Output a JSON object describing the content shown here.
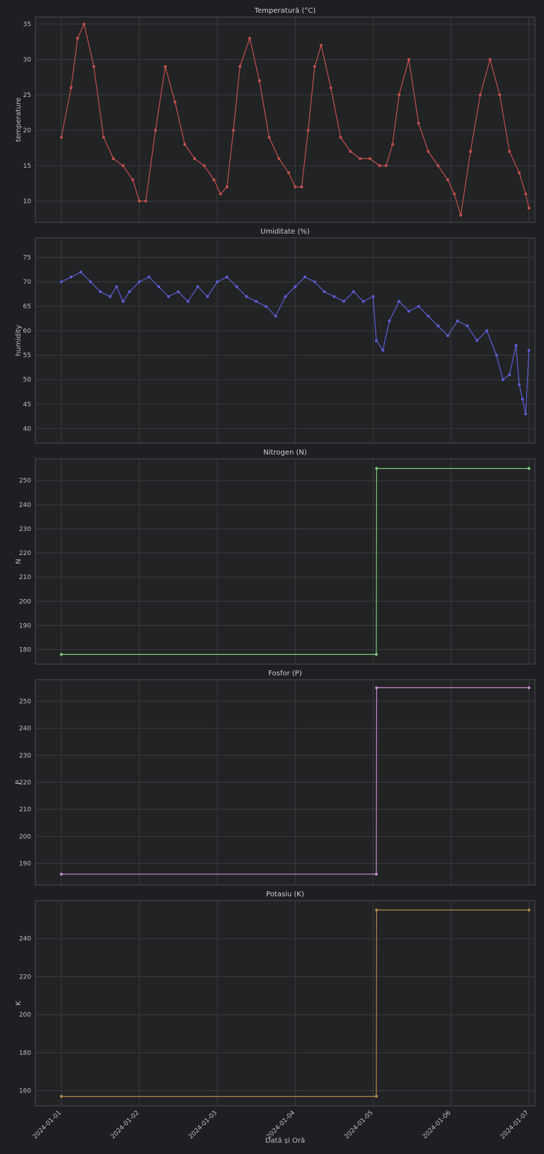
{
  "chart_data": [
    {
      "type": "line",
      "title": "Temperatură (°C)",
      "ylabel": "temperature",
      "xlabel": "",
      "ylim": [
        7,
        36
      ],
      "yticks": [
        10,
        15,
        20,
        25,
        30,
        35
      ],
      "color": "#c0504d",
      "grid": true,
      "series": [
        {
          "x": [
            "2024-01-01 00:00",
            "2024-01-01 03:00",
            "2024-01-01 05:00",
            "2024-01-01 07:00",
            "2024-01-01 10:00",
            "2024-01-01 13:00",
            "2024-01-01 16:00",
            "2024-01-01 19:00",
            "2024-01-01 22:00",
            "2024-01-02 00:00",
            "2024-01-02 02:00",
            "2024-01-02 05:00",
            "2024-01-02 08:00",
            "2024-01-02 11:00",
            "2024-01-02 14:00",
            "2024-01-02 17:00",
            "2024-01-02 20:00",
            "2024-01-02 23:00",
            "2024-01-03 01:00",
            "2024-01-03 03:00",
            "2024-01-03 05:00",
            "2024-01-03 07:00",
            "2024-01-03 10:00",
            "2024-01-03 13:00",
            "2024-01-03 16:00",
            "2024-01-03 19:00",
            "2024-01-03 22:00",
            "2024-01-04 00:00",
            "2024-01-04 02:00",
            "2024-01-04 04:00",
            "2024-01-04 06:00",
            "2024-01-04 08:00",
            "2024-01-04 11:00",
            "2024-01-04 14:00",
            "2024-01-04 17:00",
            "2024-01-04 20:00",
            "2024-01-04 23:00",
            "2024-01-05 02:00",
            "2024-01-05 04:00",
            "2024-01-05 06:00",
            "2024-01-05 08:00",
            "2024-01-05 11:00",
            "2024-01-05 14:00",
            "2024-01-05 17:00",
            "2024-01-05 20:00",
            "2024-01-05 23:00",
            "2024-01-06 01:00",
            "2024-01-06 03:00",
            "2024-01-06 06:00",
            "2024-01-06 09:00",
            "2024-01-06 12:00",
            "2024-01-06 15:00",
            "2024-01-06 18:00",
            "2024-01-06 21:00",
            "2024-01-06 23:00",
            "2024-01-07 00:00"
          ],
          "y": [
            19,
            26,
            33,
            35,
            29,
            19,
            16,
            15,
            13,
            10,
            10,
            20,
            29,
            24,
            18,
            16,
            15,
            13,
            11,
            12,
            20,
            29,
            33,
            27,
            19,
            16,
            14,
            12,
            12,
            20,
            29,
            32,
            26,
            19,
            17,
            16,
            16,
            15,
            15,
            18,
            25,
            30,
            21,
            17,
            15,
            13,
            11,
            8,
            17,
            25,
            30,
            25,
            17,
            14,
            11,
            9
          ]
        }
      ]
    },
    {
      "type": "line",
      "title": "Umiditate (%)",
      "ylabel": "humidity",
      "xlabel": "",
      "ylim": [
        37,
        79
      ],
      "yticks": [
        40,
        45,
        50,
        55,
        60,
        65,
        70,
        75
      ],
      "color": "#5a5fd0",
      "grid": true,
      "series": [
        {
          "x": [
            "2024-01-01 00:00",
            "2024-01-01 03:00",
            "2024-01-01 06:00",
            "2024-01-01 09:00",
            "2024-01-01 12:00",
            "2024-01-01 15:00",
            "2024-01-01 17:00",
            "2024-01-01 19:00",
            "2024-01-01 21:00",
            "2024-01-02 00:00",
            "2024-01-02 03:00",
            "2024-01-02 06:00",
            "2024-01-02 09:00",
            "2024-01-02 12:00",
            "2024-01-02 15:00",
            "2024-01-02 18:00",
            "2024-01-02 21:00",
            "2024-01-03 00:00",
            "2024-01-03 03:00",
            "2024-01-03 06:00",
            "2024-01-03 09:00",
            "2024-01-03 12:00",
            "2024-01-03 15:00",
            "2024-01-03 18:00",
            "2024-01-03 21:00",
            "2024-01-04 00:00",
            "2024-01-04 03:00",
            "2024-01-04 06:00",
            "2024-01-04 09:00",
            "2024-01-04 12:00",
            "2024-01-04 15:00",
            "2024-01-04 18:00",
            "2024-01-04 21:00",
            "2024-01-05 00:00",
            "2024-01-05 01:00",
            "2024-01-05 03:00",
            "2024-01-05 05:00",
            "2024-01-05 08:00",
            "2024-01-05 11:00",
            "2024-01-05 14:00",
            "2024-01-05 17:00",
            "2024-01-05 20:00",
            "2024-01-05 23:00",
            "2024-01-06 02:00",
            "2024-01-06 05:00",
            "2024-01-06 08:00",
            "2024-01-06 11:00",
            "2024-01-06 14:00",
            "2024-01-06 16:00",
            "2024-01-06 18:00",
            "2024-01-06 20:00",
            "2024-01-06 21:00",
            "2024-01-06 22:00",
            "2024-01-06 23:00",
            "2024-01-07 00:00"
          ],
          "y": [
            70,
            71,
            72,
            70,
            68,
            67,
            69,
            66,
            68,
            70,
            71,
            69,
            67,
            68,
            66,
            69,
            67,
            70,
            71,
            69,
            67,
            66,
            65,
            63,
            67,
            69,
            71,
            70,
            68,
            67,
            66,
            68,
            66,
            67,
            58,
            56,
            62,
            66,
            64,
            65,
            63,
            61,
            59,
            62,
            61,
            58,
            60,
            55,
            50,
            51,
            57,
            49,
            46,
            43,
            56
          ]
        }
      ]
    },
    {
      "type": "line",
      "title": "Nitrogen (N)",
      "ylabel": "N",
      "xlabel": "",
      "ylim": [
        174,
        259
      ],
      "yticks": [
        180,
        190,
        200,
        210,
        220,
        230,
        240,
        250
      ],
      "color": "#7fc97f",
      "grid": true,
      "series": [
        {
          "x": [
            "2024-01-01 00:00",
            "2024-01-05 01:00",
            "2024-01-05 01:05",
            "2024-01-07 00:00"
          ],
          "y": [
            178,
            178,
            255,
            255
          ]
        }
      ]
    },
    {
      "type": "line",
      "title": "Fosfor (P)",
      "ylabel": "P",
      "xlabel": "",
      "ylim": [
        182,
        258
      ],
      "yticks": [
        190,
        200,
        210,
        220,
        230,
        240,
        250
      ],
      "color": "#c58bd1",
      "grid": true,
      "series": [
        {
          "x": [
            "2024-01-01 00:00",
            "2024-01-05 01:00",
            "2024-01-05 01:05",
            "2024-01-07 00:00"
          ],
          "y": [
            186,
            186,
            255,
            255
          ]
        }
      ]
    },
    {
      "type": "line",
      "title": "Potasiu (K)",
      "ylabel": "K",
      "xlabel": "Dată și Oră",
      "ylim": [
        152,
        260
      ],
      "yticks": [
        160,
        180,
        200,
        220,
        240
      ],
      "color": "#b08a4a",
      "grid": true,
      "series": [
        {
          "x": [
            "2024-01-01 00:00",
            "2024-01-05 01:00",
            "2024-01-05 01:05",
            "2024-01-07 00:00"
          ],
          "y": [
            157,
            157,
            255,
            255
          ]
        }
      ]
    }
  ],
  "x_axis": {
    "ticks": [
      "2024-01-01",
      "2024-01-02",
      "2024-01-03",
      "2024-01-04",
      "2024-01-05",
      "2024-01-06",
      "2024-01-07"
    ]
  }
}
